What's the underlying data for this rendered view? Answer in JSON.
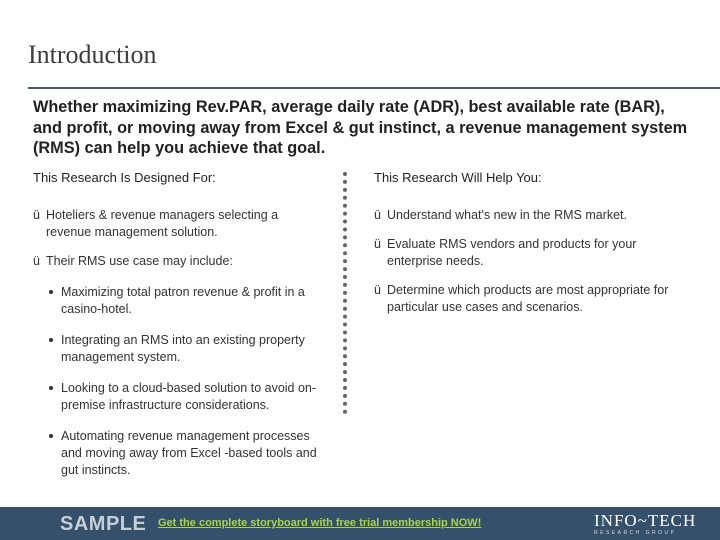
{
  "page": {
    "title": "Introduction",
    "intro": "Whether maximizing Rev.PAR, average daily rate (ADR), best available rate (BAR), and profit, or moving away from Excel & gut instinct, a revenue management system (RMS) can help you achieve that goal."
  },
  "left": {
    "heading": "This Research Is Designed For:",
    "item1": "Hoteliers & revenue managers selecting a revenue management solution.",
    "item2": "Their RMS use case may include:",
    "bullets": [
      "Maximizing total patron revenue & profit in a casino-hotel.",
      "Integrating an RMS into an existing property management system.",
      "Looking to a cloud-based solution to avoid on-premise infrastructure considerations.",
      "Automating revenue management processes and moving away from Excel -based tools and gut instincts."
    ]
  },
  "right": {
    "heading": "This Research Will Help You:",
    "items": [
      "Understand what's new in the RMS market.",
      "Evaluate RMS vendors and products for your enterprise needs.",
      "Determine which products are most appropriate for particular use cases and scenarios."
    ]
  },
  "footer": {
    "sample": "SAMPLE",
    "promo": "Get the complete storyboard with free trial membership NOW!",
    "logo_main": "INFO~TECH",
    "logo_sub": "RESEARCH GROUP"
  },
  "glyphs": {
    "check": "ü"
  },
  "colors": {
    "footer_bg": "#34506b",
    "promo": "#a9d44a",
    "rule": "#4a5a6b"
  }
}
